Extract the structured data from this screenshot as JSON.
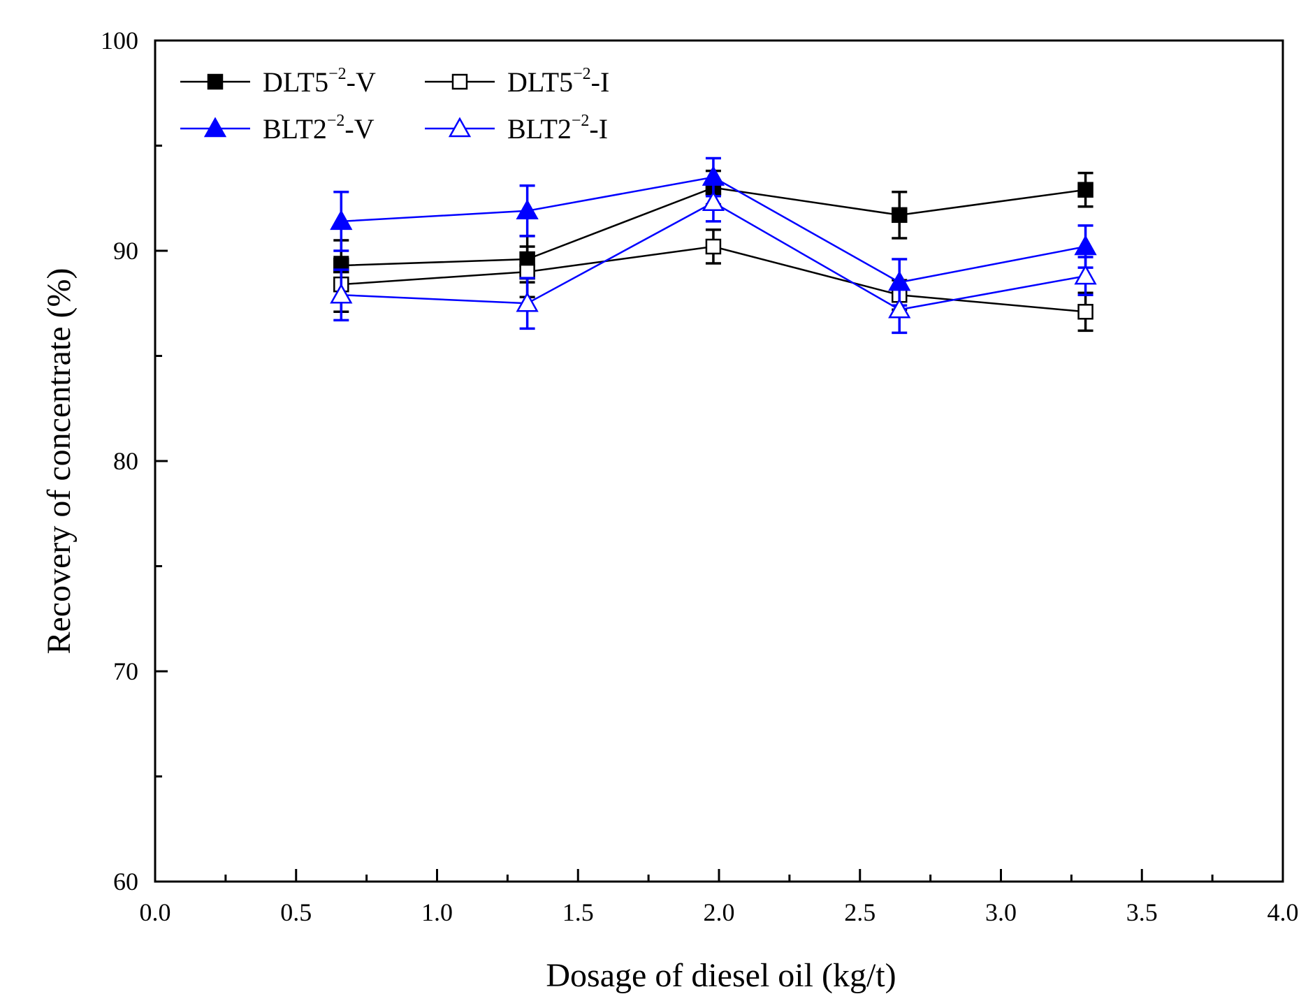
{
  "chart_data": {
    "type": "line",
    "title": "",
    "xlabel": "Dosage of diesel oil (kg/t)",
    "ylabel": "Recovery of concentrate (%)",
    "xlim": [
      0.0,
      4.0
    ],
    "ylim": [
      60,
      100
    ],
    "x_ticks": [
      "0.0",
      "0.5",
      "1.0",
      "1.5",
      "2.0",
      "2.5",
      "3.0",
      "3.5",
      "4.0"
    ],
    "y_ticks": [
      "60",
      "70",
      "80",
      "90",
      "100"
    ],
    "x": [
      0.66,
      1.32,
      1.98,
      2.64,
      3.3
    ],
    "legend_position": "top-left",
    "series": [
      {
        "name": "DLT5-V",
        "label_base": "DLT5",
        "label_sup": "−2",
        "label_suffix": "-V",
        "marker": "square",
        "filled": true,
        "color": "#000000",
        "values": [
          89.3,
          89.6,
          93.0,
          91.7,
          92.9
        ],
        "errors": [
          1.2,
          1.1,
          0.8,
          1.1,
          0.8
        ]
      },
      {
        "name": "DLT5-I",
        "label_base": "DLT5",
        "label_sup": "−2",
        "label_suffix": "-I",
        "marker": "square",
        "filled": false,
        "color": "#000000",
        "values": [
          88.4,
          89.0,
          90.2,
          87.9,
          87.1
        ],
        "errors": [
          1.3,
          1.2,
          0.8,
          0.7,
          0.9
        ]
      },
      {
        "name": "BLT2-V",
        "label_base": "BLT2",
        "label_sup": "−2",
        "label_suffix": "-V",
        "marker": "triangle",
        "filled": true,
        "color": "#0000ff",
        "values": [
          91.4,
          91.9,
          93.5,
          88.5,
          90.2
        ],
        "errors": [
          1.4,
          1.2,
          0.9,
          1.1,
          1.0
        ]
      },
      {
        "name": "BLT2-I",
        "label_base": "BLT2",
        "label_sup": "−2",
        "label_suffix": "-I",
        "marker": "triangle",
        "filled": false,
        "color": "#0000ff",
        "values": [
          87.9,
          87.5,
          92.3,
          87.2,
          88.8
        ],
        "errors": [
          1.2,
          1.2,
          0.9,
          1.1,
          0.9
        ]
      }
    ]
  }
}
